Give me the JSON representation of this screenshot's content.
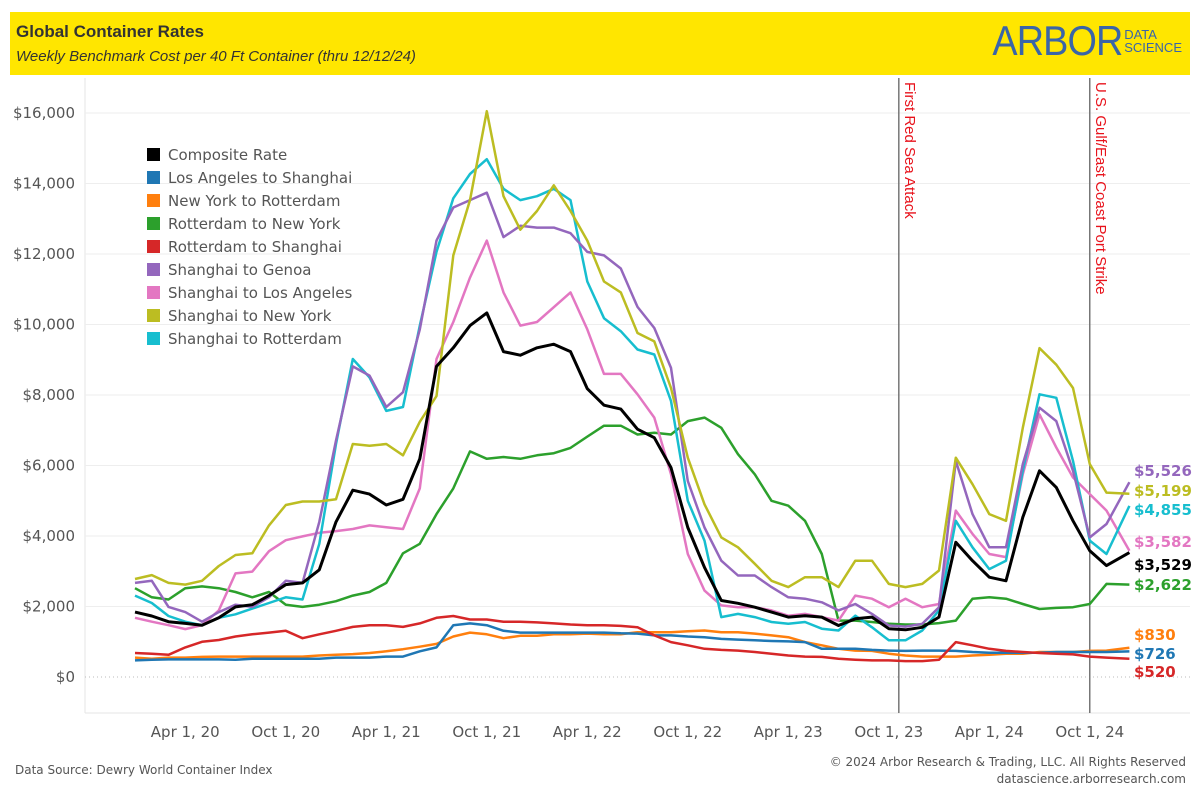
{
  "header": {
    "title": "Global Container Rates",
    "subtitle": "Weekly Benchmark Cost per 40 Ft Container (thru 12/12/24)",
    "logo_main": "ARBOR",
    "logo_sub1": "DATA",
    "logo_sub2": "SCIENCE",
    "background_color": "#FFE600"
  },
  "footer": {
    "source": "Data Source: Dewry World Container Index",
    "copyright": "© 2024 Arbor Research & Trading, LLC. All Rights Reserved",
    "website": "datascience.arborresearch.com"
  },
  "chart_data": {
    "type": "line",
    "title": "Global Container Rates",
    "subtitle": "Weekly Benchmark Cost per 40 Ft Container (thru 12/12/24)",
    "ylim": [
      -1000,
      16600
    ],
    "y_ticks": [
      0,
      2000,
      4000,
      6000,
      8000,
      10000,
      12000,
      14000,
      16000
    ],
    "y_tick_labels": [
      "$0",
      "$2,000",
      "$4,000",
      "$6,000",
      "$8,000",
      "$10,000",
      "$12,000",
      "$14,000",
      "$16,000"
    ],
    "x_ticks": [
      "2020-04",
      "2020-10",
      "2021-04",
      "2021-10",
      "2022-04",
      "2022-10",
      "2023-04",
      "2023-10",
      "2024-04",
      "2024-10"
    ],
    "x_tick_labels": [
      "Apr 1, 20",
      "Oct 1, 20",
      "Apr 1, 21",
      "Oct 1, 21",
      "Apr 1, 22",
      "Oct 1, 22",
      "Apr 1, 23",
      "Oct 1, 23",
      "Apr 1, 24",
      "Oct 1, 24"
    ],
    "grid": true,
    "legend_position": "top-left",
    "events": [
      {
        "date": "2023-10-19",
        "label": "First Red Sea Attack"
      },
      {
        "date": "2024-10-01",
        "label": "U.S. Gulf/East Coast Port Strike"
      }
    ],
    "x": [
      "2020-01",
      "2020-02",
      "2020-03",
      "2020-04",
      "2020-05",
      "2020-06",
      "2020-07",
      "2020-08",
      "2020-09",
      "2020-10",
      "2020-11",
      "2020-12",
      "2021-01",
      "2021-02",
      "2021-03",
      "2021-04",
      "2021-05",
      "2021-06",
      "2021-07",
      "2021-08",
      "2021-09",
      "2021-10",
      "2021-11",
      "2021-12",
      "2022-01",
      "2022-02",
      "2022-03",
      "2022-04",
      "2022-05",
      "2022-06",
      "2022-07",
      "2022-08",
      "2022-09",
      "2022-10",
      "2022-11",
      "2022-12",
      "2023-01",
      "2023-02",
      "2023-03",
      "2023-04",
      "2023-05",
      "2023-06",
      "2023-07",
      "2023-08",
      "2023-09",
      "2023-10",
      "2023-11",
      "2023-12",
      "2024-01",
      "2024-02",
      "2024-03",
      "2024-04",
      "2024-05",
      "2024-06",
      "2024-07",
      "2024-08",
      "2024-09",
      "2024-10",
      "2024-11",
      "2024-12-12"
    ],
    "series": [
      {
        "name": "Composite Rate",
        "color": "#000000",
        "last_label": "$3,529",
        "values": [
          1840,
          1730,
          1570,
          1520,
          1470,
          1680,
          1990,
          2050,
          2310,
          2620,
          2670,
          3040,
          4400,
          5300,
          5190,
          4880,
          5040,
          6190,
          8810,
          9340,
          9970,
          10330,
          9230,
          9130,
          9340,
          9440,
          9230,
          8180,
          7710,
          7600,
          7030,
          6790,
          5940,
          4240,
          3110,
          2170,
          2090,
          1980,
          1840,
          1700,
          1740,
          1700,
          1460,
          1650,
          1700,
          1370,
          1340,
          1410,
          1700,
          3820,
          3300,
          2830,
          2730,
          4530,
          5850,
          5380,
          4430,
          3580,
          3160,
          3529
        ]
      },
      {
        "name": "Los Angeles to Shanghai",
        "color": "#1F77B4",
        "last_label": "$726",
        "values": [
          470,
          490,
          500,
          500,
          500,
          500,
          490,
          520,
          520,
          520,
          520,
          520,
          550,
          550,
          550,
          580,
          580,
          730,
          840,
          1470,
          1520,
          1470,
          1310,
          1260,
          1260,
          1260,
          1260,
          1260,
          1260,
          1240,
          1230,
          1180,
          1180,
          1150,
          1130,
          1080,
          1060,
          1040,
          1020,
          1010,
          990,
          800,
          800,
          800,
          770,
          750,
          740,
          750,
          750,
          740,
          710,
          690,
          690,
          690,
          690,
          710,
          710,
          710,
          710,
          726
        ]
      },
      {
        "name": "New York to Rotterdam",
        "color": "#FF7F0E",
        "last_label": "$830",
        "values": [
          550,
          520,
          550,
          550,
          570,
          580,
          580,
          580,
          580,
          580,
          580,
          610,
          630,
          650,
          680,
          730,
          790,
          860,
          940,
          1150,
          1260,
          1210,
          1100,
          1170,
          1170,
          1210,
          1210,
          1230,
          1210,
          1210,
          1270,
          1270,
          1270,
          1300,
          1320,
          1270,
          1270,
          1230,
          1180,
          1130,
          990,
          900,
          800,
          750,
          740,
          660,
          610,
          580,
          580,
          580,
          610,
          630,
          660,
          660,
          710,
          710,
          710,
          740,
          750,
          830
        ]
      },
      {
        "name": "Rotterdam to New York",
        "color": "#2CA02C",
        "last_label": "$2,622",
        "values": [
          2520,
          2260,
          2200,
          2520,
          2570,
          2520,
          2410,
          2260,
          2410,
          2050,
          1990,
          2050,
          2150,
          2310,
          2410,
          2670,
          3510,
          3780,
          4620,
          5350,
          6400,
          6190,
          6240,
          6190,
          6290,
          6350,
          6500,
          6820,
          7130,
          7130,
          6880,
          6930,
          6880,
          7260,
          7360,
          7070,
          6320,
          5750,
          5000,
          4860,
          4430,
          3490,
          1600,
          1600,
          1560,
          1510,
          1490,
          1490,
          1530,
          1600,
          2220,
          2260,
          2220,
          2070,
          1930,
          1960,
          1980,
          2070,
          2640,
          2622
        ]
      },
      {
        "name": "Rotterdam to Shanghai",
        "color": "#D62728",
        "last_label": "$520",
        "values": [
          680,
          660,
          630,
          840,
          1000,
          1050,
          1150,
          1210,
          1260,
          1310,
          1100,
          1210,
          1310,
          1420,
          1470,
          1470,
          1420,
          1520,
          1680,
          1730,
          1630,
          1630,
          1570,
          1570,
          1550,
          1520,
          1490,
          1470,
          1470,
          1450,
          1410,
          1180,
          990,
          900,
          800,
          770,
          750,
          710,
          660,
          610,
          580,
          570,
          520,
          490,
          470,
          470,
          450,
          450,
          490,
          990,
          900,
          800,
          740,
          710,
          680,
          660,
          640,
          580,
          550,
          520
        ]
      },
      {
        "name": "Shanghai to Genoa",
        "color": "#9467BD",
        "last_label": "$5,526",
        "values": [
          2670,
          2730,
          1990,
          1840,
          1570,
          1840,
          2050,
          1990,
          2260,
          2730,
          2670,
          4400,
          6710,
          8810,
          8550,
          7660,
          8080,
          9860,
          12380,
          13320,
          13530,
          13740,
          12480,
          12800,
          12750,
          12750,
          12590,
          12060,
          11960,
          11590,
          10500,
          9900,
          8770,
          5560,
          4240,
          3300,
          2880,
          2880,
          2550,
          2260,
          2220,
          2120,
          1890,
          2070,
          1790,
          1460,
          1430,
          1510,
          1980,
          6130,
          4620,
          3680,
          3680,
          6040,
          7640,
          7260,
          5850,
          3960,
          4340,
          5526
        ]
      },
      {
        "name": "Shanghai to Los Angeles",
        "color": "#E377C2",
        "last_label": "$3,582",
        "values": [
          1680,
          1570,
          1470,
          1360,
          1470,
          1890,
          2940,
          2990,
          3570,
          3880,
          3990,
          4090,
          4140,
          4200,
          4300,
          4250,
          4200,
          5350,
          9020,
          10070,
          11330,
          12380,
          10910,
          9970,
          10070,
          10490,
          10910,
          9860,
          8600,
          8600,
          8020,
          7360,
          5750,
          3490,
          2450,
          2030,
          1980,
          1980,
          1890,
          1740,
          1790,
          1700,
          1600,
          2310,
          2220,
          1980,
          2220,
          1980,
          2070,
          4720,
          4060,
          3490,
          3400,
          5750,
          7450,
          6510,
          5660,
          5190,
          4720,
          3582
        ]
      },
      {
        "name": "Shanghai to New York",
        "color": "#BCBD22",
        "last_label": "$5,199",
        "values": [
          2780,
          2890,
          2670,
          2620,
          2730,
          3150,
          3460,
          3510,
          4300,
          4880,
          4980,
          4980,
          5040,
          6610,
          6560,
          6610,
          6290,
          7240,
          7970,
          11960,
          13530,
          16050,
          13640,
          12690,
          13220,
          13950,
          13220,
          12380,
          11220,
          10910,
          9760,
          9520,
          8200,
          6220,
          4900,
          3960,
          3680,
          3210,
          2730,
          2550,
          2830,
          2830,
          2550,
          3300,
          3300,
          2640,
          2550,
          2640,
          3020,
          6220,
          5470,
          4620,
          4430,
          7070,
          9330,
          8860,
          8200,
          6040,
          5230,
          5199
        ]
      },
      {
        "name": "Shanghai to Rotterdam",
        "color": "#17BECF",
        "last_label": "$4,855",
        "values": [
          2310,
          2100,
          1730,
          1570,
          1470,
          1680,
          1780,
          1940,
          2100,
          2260,
          2200,
          3780,
          6610,
          9020,
          8500,
          7550,
          7660,
          9970,
          12060,
          13580,
          14270,
          14690,
          13850,
          13530,
          13640,
          13850,
          13530,
          11220,
          10180,
          9810,
          9290,
          9150,
          7830,
          5000,
          3870,
          1700,
          1790,
          1700,
          1560,
          1510,
          1560,
          1370,
          1320,
          1740,
          1410,
          1040,
          1040,
          1320,
          1890,
          4430,
          3680,
          3060,
          3300,
          5850,
          8020,
          7920,
          6130,
          3870,
          3490,
          4855
        ]
      }
    ]
  }
}
